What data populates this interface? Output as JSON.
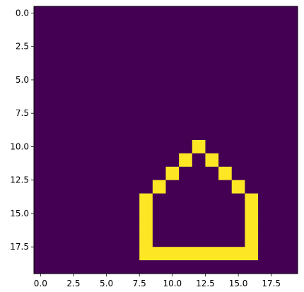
{
  "chart_data": {
    "type": "heatmap",
    "title": "",
    "xlabel": "",
    "ylabel": "",
    "rows": 20,
    "cols": 20,
    "xlim": [
      -0.5,
      19.5
    ],
    "ylim": [
      19.5,
      -0.5
    ],
    "x_ticks": [
      0.0,
      2.5,
      5.0,
      7.5,
      10.0,
      12.5,
      15.0,
      17.5
    ],
    "x_tick_labels": [
      "0.0",
      "2.5",
      "5.0",
      "7.5",
      "10.0",
      "12.5",
      "15.0",
      "17.5"
    ],
    "y_ticks": [
      0.0,
      2.5,
      5.0,
      7.5,
      10.0,
      12.5,
      15.0,
      17.5
    ],
    "y_tick_labels": [
      "0.0",
      "2.5",
      "5.0",
      "7.5",
      "10.0",
      "12.5",
      "15.0",
      "17.5"
    ],
    "background_value": 0,
    "colormap": {
      "low": "#440154",
      "high": "#fde725"
    },
    "grid": false,
    "lit_cells": [
      [
        10,
        12
      ],
      [
        11,
        11
      ],
      [
        11,
        13
      ],
      [
        12,
        10
      ],
      [
        12,
        14
      ],
      [
        13,
        9
      ],
      [
        13,
        15
      ],
      [
        14,
        8
      ],
      [
        14,
        16
      ],
      [
        15,
        8
      ],
      [
        15,
        16
      ],
      [
        16,
        8
      ],
      [
        16,
        16
      ],
      [
        17,
        8
      ],
      [
        17,
        16
      ],
      [
        18,
        8
      ],
      [
        18,
        9
      ],
      [
        18,
        10
      ],
      [
        18,
        11
      ],
      [
        18,
        12
      ],
      [
        18,
        13
      ],
      [
        18,
        14
      ],
      [
        18,
        15
      ],
      [
        18,
        16
      ]
    ]
  }
}
